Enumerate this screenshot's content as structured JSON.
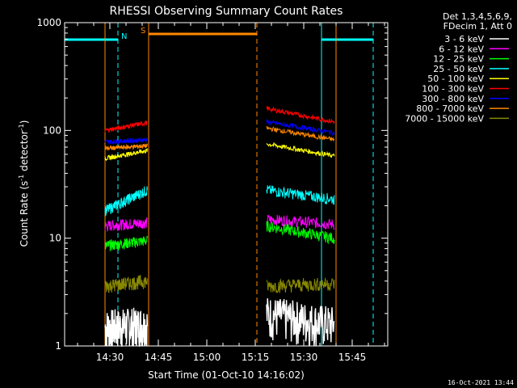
{
  "chart_data": {
    "type": "line",
    "title": "RHESSI Observing Summary Count Rates",
    "xlabel": "Start Time (01-Oct-10 14:16:02)",
    "ylabel": "Count Rate (s⁻¹ detector⁻¹)",
    "ylabel_parts": {
      "main": "Count Rate (s",
      "sup1": "-1",
      "mid": " detector",
      "sup2": "-1",
      "end": ")"
    },
    "y_scale": "log",
    "ylim": [
      1,
      1000
    ],
    "xlim_minutes": [
      0,
      100
    ],
    "x_ticks": [
      {
        "label": "14:30",
        "minute": 14
      },
      {
        "label": "14:45",
        "minute": 29
      },
      {
        "label": "15:00",
        "minute": 44
      },
      {
        "label": "15:15",
        "minute": 59
      },
      {
        "label": "15:30",
        "minute": 74
      },
      {
        "label": "15:45",
        "minute": 89
      }
    ],
    "y_ticks": [
      {
        "label": "1",
        "value": 1
      },
      {
        "label": "10",
        "value": 10
      },
      {
        "label": "100",
        "value": 100
      },
      {
        "label": "1000",
        "value": 1000
      }
    ],
    "legend": {
      "header": [
        "Det 1,3,4,5,6,9,",
        "FDecim 1, Att 0"
      ],
      "position": "right"
    },
    "series": [
      {
        "name": "3 - 6 keV",
        "color": "#ffffff",
        "segments": [
          {
            "x": [
              12.5,
              25.6
            ],
            "y": [
              1.5,
              1.6
            ]
          },
          {
            "x": [
              62.5,
              83.5
            ],
            "y": [
              2.0,
              1.6
            ]
          }
        ]
      },
      {
        "name": "6 - 12 keV",
        "color": "#ff00ff",
        "segments": [
          {
            "x": [
              12.5,
              25.6
            ],
            "y": [
              13.0,
              14.0
            ]
          },
          {
            "x": [
              62.5,
              83.5
            ],
            "y": [
              15.0,
              13.5
            ]
          }
        ]
      },
      {
        "name": "12 - 25 keV",
        "color": "#00ff00",
        "segments": [
          {
            "x": [
              12.5,
              25.6
            ],
            "y": [
              8.5,
              9.5
            ]
          },
          {
            "x": [
              62.5,
              83.5
            ],
            "y": [
              13.0,
              10.0
            ]
          }
        ]
      },
      {
        "name": "25 - 50 keV",
        "color": "#00ffff",
        "segments": [
          {
            "x": [
              12.5,
              25.6
            ],
            "y": [
              18.0,
              28.0
            ]
          },
          {
            "x": [
              62.5,
              83.5
            ],
            "y": [
              28.0,
              23.0
            ]
          }
        ]
      },
      {
        "name": "50 - 100 keV",
        "color": "#ffff00",
        "segments": [
          {
            "x": [
              12.5,
              25.6
            ],
            "y": [
              55.0,
              65.0
            ]
          },
          {
            "x": [
              62.5,
              83.5
            ],
            "y": [
              75.0,
              58.0
            ]
          }
        ]
      },
      {
        "name": "100 - 300 keV",
        "color": "#ff0000",
        "segments": [
          {
            "x": [
              12.5,
              25.6
            ],
            "y": [
              100.0,
              118.0
            ]
          },
          {
            "x": [
              62.5,
              83.5
            ],
            "y": [
              160.0,
              120.0
            ]
          }
        ]
      },
      {
        "name": "300 - 800 keV",
        "color": "#0000ff",
        "segments": [
          {
            "x": [
              12.5,
              25.6
            ],
            "y": [
              78.0,
              82.0
            ]
          },
          {
            "x": [
              62.5,
              83.5
            ],
            "y": [
              120.0,
              95.0
            ]
          }
        ]
      },
      {
        "name": "800 - 7000 keV",
        "color": "#ff8800",
        "segments": [
          {
            "x": [
              12.5,
              25.6
            ],
            "y": [
              68.0,
              72.0
            ]
          },
          {
            "x": [
              62.5,
              83.5
            ],
            "y": [
              105.0,
              82.0
            ]
          }
        ]
      },
      {
        "name": "7000 - 15000 keV",
        "color": "#888800",
        "segments": [
          {
            "x": [
              12.5,
              25.6
            ],
            "y": [
              3.6,
              4.0
            ]
          },
          {
            "x": [
              62.5,
              83.5
            ],
            "y": [
              3.6,
              3.8
            ]
          }
        ]
      }
    ],
    "flags": [
      {
        "label": "N",
        "color": "#00ffff",
        "x": [
          0,
          16.5
        ],
        "line_minutes": [
          0
        ],
        "dashed_minutes": [
          16.5
        ]
      },
      {
        "label": "",
        "color": "#00ffff",
        "x": [
          79.5,
          95.5
        ],
        "line_minutes": [
          79.5
        ],
        "dashed_minutes": [
          95.5
        ]
      },
      {
        "label": "S",
        "color": "#ff8800",
        "x": [
          26,
          59.5
        ],
        "line_minutes": [
          26
        ],
        "dashed_minutes": [
          59.5
        ]
      }
    ],
    "orange_verticals_minutes": [
      12.5,
      84
    ],
    "timestamp": "16-Oct-2021 13:44"
  }
}
